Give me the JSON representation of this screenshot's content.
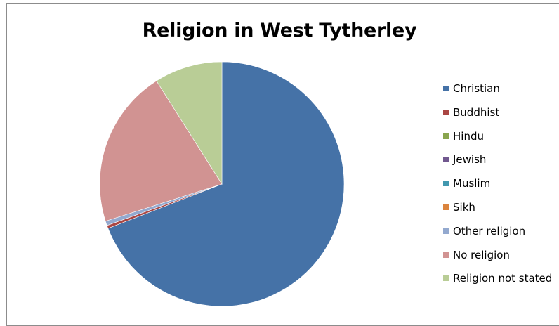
{
  "chart_data": {
    "type": "pie",
    "title": "Religion in West Tytherley",
    "legend_position": "right",
    "categories": [
      "Christian",
      "Buddhist",
      "Hindu",
      "Jewish",
      "Muslim",
      "Sikh",
      "Other religion",
      "No religion",
      "Religion not stated"
    ],
    "values": [
      69.1,
      0.4,
      0.0,
      0.0,
      0.0,
      0.0,
      0.6,
      20.9,
      9.0
    ],
    "colors": [
      "#4572A7",
      "#AA4643",
      "#89A54E",
      "#71588F",
      "#4198AF",
      "#DB843D",
      "#93A9CF",
      "#D19392",
      "#B9CD96"
    ]
  }
}
